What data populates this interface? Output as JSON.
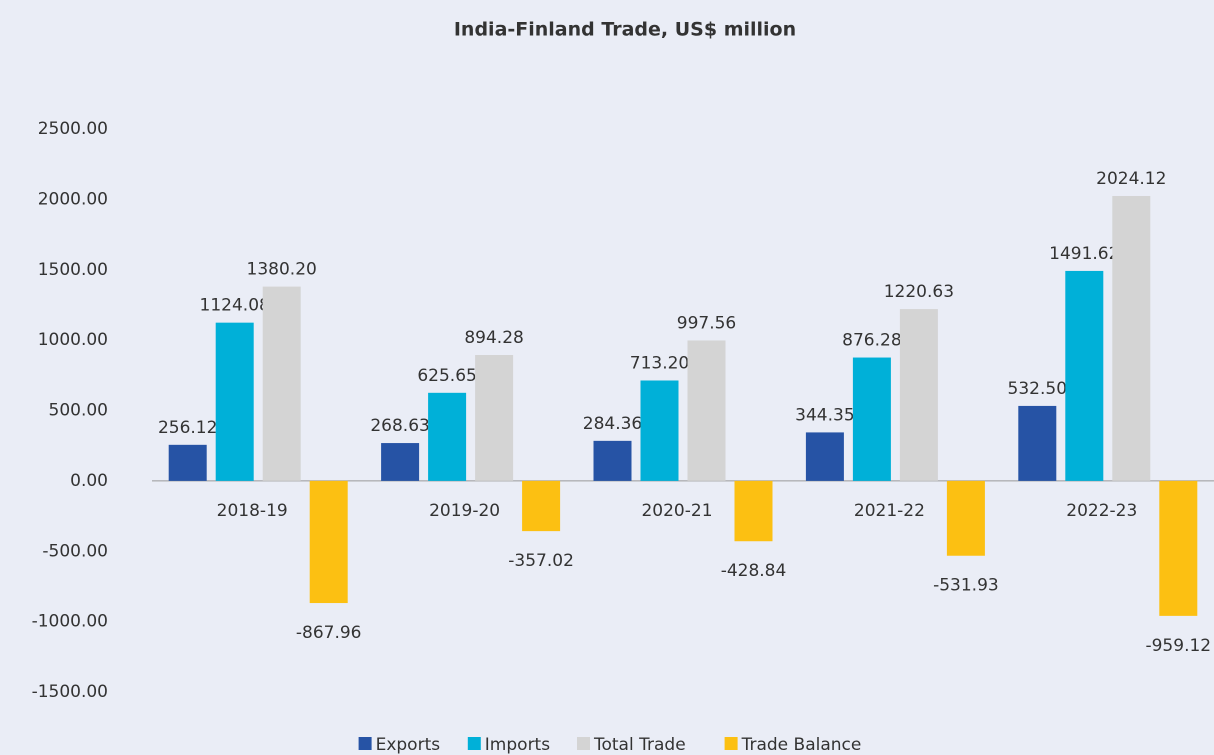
{
  "chart_data": {
    "type": "bar",
    "title": "India-Finland Trade, US$ million",
    "categories": [
      "2018-19",
      "2019-20",
      "2020-21",
      "2021-22",
      "2022-23"
    ],
    "series": [
      {
        "name": "Exports",
        "color": "#2653a5",
        "values": [
          256.12,
          268.63,
          284.36,
          344.35,
          532.5
        ],
        "value_labels": [
          "256.12",
          "268.63",
          "284.36",
          "344.35",
          "532.50"
        ]
      },
      {
        "name": "Imports",
        "color": "#00b0d8",
        "values": [
          1124.08,
          625.65,
          713.2,
          876.28,
          1491.62
        ],
        "value_labels": [
          "1124.08",
          "625.65",
          "713.20",
          "876.28",
          "1491.62"
        ]
      },
      {
        "name": "Total Trade",
        "color": "#d4d4d4",
        "values": [
          1380.2,
          894.28,
          997.56,
          1220.63,
          2024.12
        ],
        "value_labels": [
          "1380.20",
          "894.28",
          "997.56",
          "1220.63",
          "2024.12"
        ]
      },
      {
        "name": "Trade Balance",
        "color": "#fcc012",
        "values": [
          -867.96,
          -357.02,
          -428.84,
          -531.93,
          -959.12
        ],
        "value_labels": [
          "-867.96",
          "-357.02",
          "-428.84",
          "-531.93",
          "-959.12"
        ]
      }
    ],
    "ylim": [
      -1500,
      2500
    ],
    "yticks": [
      {
        "value": -1500,
        "label": "-1500.00"
      },
      {
        "value": -1000,
        "label": "-1000.00"
      },
      {
        "value": -500,
        "label": "-500.00"
      },
      {
        "value": 0,
        "label": "0.00"
      },
      {
        "value": 500,
        "label": "500.00"
      },
      {
        "value": 1000,
        "label": "1000.00"
      },
      {
        "value": 1500,
        "label": "1500.00"
      },
      {
        "value": 2000,
        "label": "2000.00"
      },
      {
        "value": 2500,
        "label": "2500.00"
      }
    ],
    "grid": false,
    "legend": "bottom"
  }
}
